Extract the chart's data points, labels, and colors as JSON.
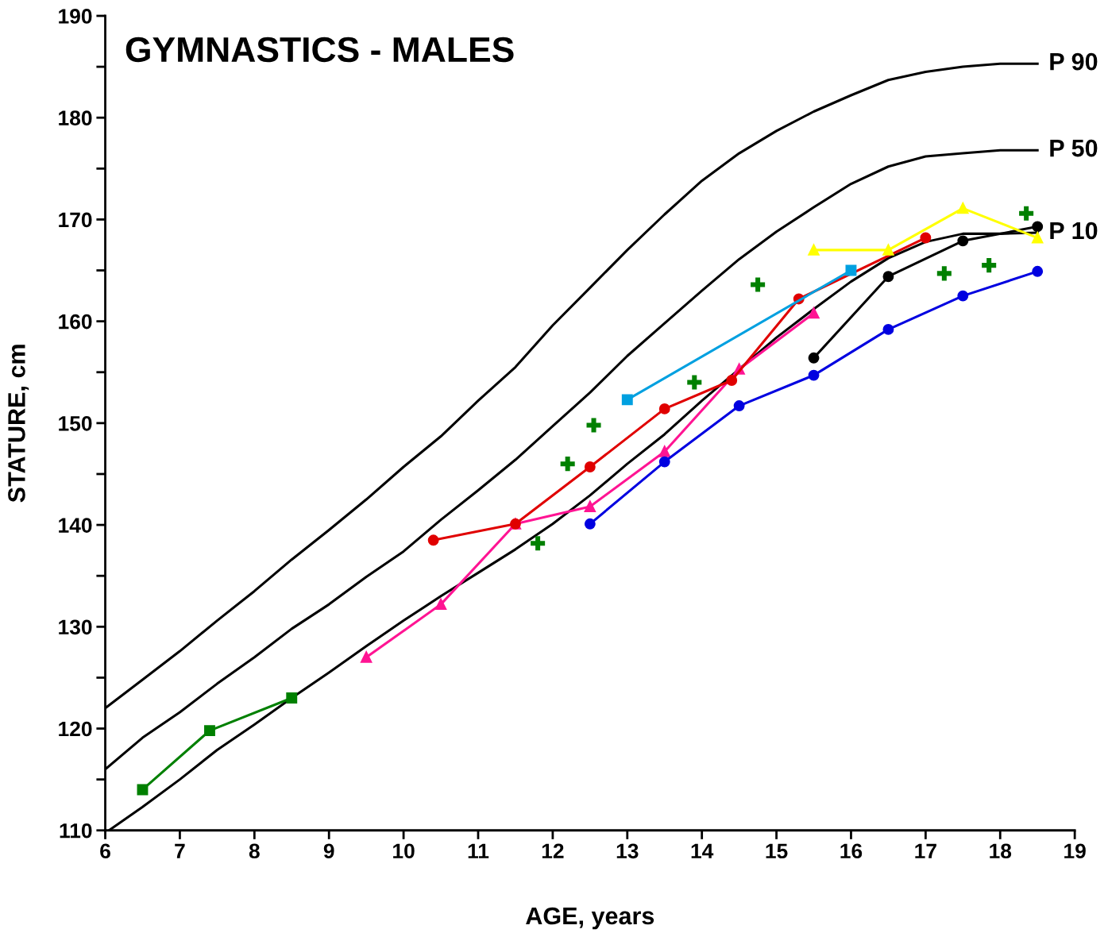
{
  "chart_data": {
    "type": "line",
    "title": "GYMNASTICS - MALES",
    "xlabel": "AGE, years",
    "ylabel": "STATURE, cm",
    "xlim": [
      6,
      19
    ],
    "xticks": [
      6,
      7,
      8,
      9,
      10,
      11,
      12,
      13,
      14,
      15,
      16,
      17,
      18,
      19
    ],
    "ylim": [
      110,
      190
    ],
    "yticks": [
      110,
      {
        "value": 115,
        "label": null
      },
      120,
      {
        "value": 125,
        "label": null
      },
      130,
      {
        "value": 135,
        "label": null
      },
      140,
      {
        "value": 145,
        "label": null
      },
      150,
      {
        "value": 155,
        "label": null
      },
      160,
      {
        "value": 165,
        "label": null
      },
      170,
      {
        "value": 175,
        "label": null
      },
      180,
      {
        "value": 185,
        "label": null
      },
      190
    ],
    "grid": false,
    "legend": false,
    "series": [
      {
        "name": "P 90",
        "color": "#000000",
        "marker": "none",
        "x": [
          6,
          6.5,
          7,
          7.5,
          8,
          8.5,
          9,
          9.5,
          10,
          10.5,
          11,
          11.5,
          12,
          12.5,
          13,
          13.5,
          14,
          14.5,
          15,
          15.5,
          16,
          16.5,
          17,
          17.5,
          18,
          18.5
        ],
        "values": [
          122,
          124.8,
          127.6,
          130.6,
          133.5,
          136.6,
          139.5,
          142.5,
          145.7,
          148.7,
          152.2,
          155.5,
          159.6,
          163.3,
          167,
          170.5,
          173.8,
          176.5,
          178.7,
          180.6,
          182.2,
          183.7,
          184.5,
          185,
          185.3,
          185.3
        ]
      },
      {
        "name": "P 50",
        "color": "#000000",
        "marker": "none",
        "x": [
          6,
          6.5,
          7,
          7.5,
          8,
          8.5,
          9,
          9.5,
          10,
          10.5,
          11,
          11.5,
          12,
          12.5,
          13,
          13.5,
          14,
          14.5,
          15,
          15.5,
          16,
          16.5,
          17,
          17.5,
          18,
          18.5
        ],
        "values": [
          116,
          119.1,
          121.6,
          124.4,
          127,
          129.8,
          132.2,
          134.9,
          137.4,
          140.5,
          143.4,
          146.4,
          149.7,
          153,
          156.6,
          159.8,
          163,
          166.1,
          168.8,
          171.2,
          173.5,
          175.2,
          176.2,
          176.5,
          176.8,
          176.8
        ]
      },
      {
        "name": "P 10",
        "color": "#000000",
        "marker": "none",
        "x": [
          6.05,
          6.5,
          7,
          7.5,
          8,
          8.5,
          9,
          9.5,
          10,
          10.5,
          11,
          11.5,
          12,
          12.5,
          13,
          13.5,
          14,
          14.5,
          15,
          15.5,
          16,
          16.5,
          17,
          17.5,
          18,
          18.5
        ],
        "values": [
          110,
          112.3,
          115,
          117.9,
          120.4,
          123,
          125.5,
          128.1,
          130.6,
          133,
          135.3,
          137.6,
          140.1,
          142.9,
          146,
          148.9,
          152.2,
          155.3,
          158.4,
          161.2,
          163.9,
          166.2,
          167.8,
          168.6,
          168.6,
          168.7
        ]
      },
      {
        "color": "#008000",
        "marker": "square",
        "x": [
          6.5,
          7.4,
          8.5
        ],
        "values": [
          114,
          119.8,
          123
        ]
      },
      {
        "color": "#ff1493",
        "marker": "triangle",
        "x": [
          9.5,
          10.5,
          11.5,
          12.5,
          13.5,
          14.5,
          15.5
        ],
        "values": [
          127,
          132.2,
          140.1,
          141.8,
          147.2,
          155.3,
          160.8
        ]
      },
      {
        "color": "#e00000",
        "marker": "circle",
        "x": [
          10.4,
          11.5,
          12.5,
          13.5,
          14.4,
          15.3,
          17
        ],
        "values": [
          138.5,
          140.1,
          145.7,
          151.4,
          154.2,
          162.2,
          168.2
        ]
      },
      {
        "color": "#00a0e0",
        "marker": "square",
        "x": [
          13,
          16
        ],
        "values": [
          152.3,
          165
        ]
      },
      {
        "color": "#0000e0",
        "marker": "circle",
        "x": [
          12.5,
          13.5,
          14.5,
          15.5,
          16.5,
          17.5,
          18.5
        ],
        "values": [
          140.1,
          146.2,
          151.7,
          154.7,
          159.2,
          162.5,
          164.9
        ]
      },
      {
        "color": "#000000",
        "marker": "circle",
        "x": [
          15.5,
          16.5,
          17.5,
          18.5
        ],
        "values": [
          156.4,
          164.4,
          167.9,
          169.3
        ]
      },
      {
        "color": "#ffff00",
        "marker": "triangle",
        "x": [
          15.5,
          16.5,
          17.5,
          18.5
        ],
        "values": [
          167,
          167,
          171.1,
          168.2
        ]
      },
      {
        "type": "scatter",
        "color": "#008000",
        "marker": "cross",
        "x": [
          11.8,
          12.2,
          12.55,
          13.9,
          14.75,
          17.25,
          17.85,
          18.35
        ],
        "values": [
          138.2,
          146,
          149.8,
          154,
          163.6,
          164.7,
          165.5,
          170.6
        ]
      }
    ]
  }
}
